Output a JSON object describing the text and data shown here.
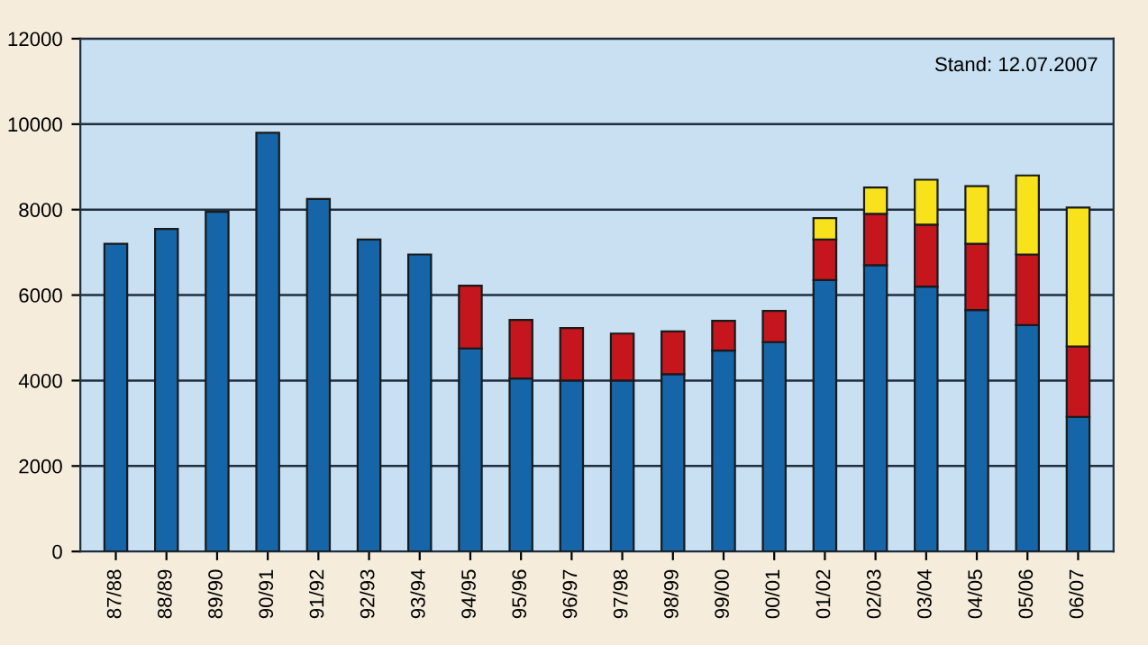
{
  "chart_data": {
    "type": "bar",
    "stacked": true,
    "categories": [
      "87/88",
      "88/89",
      "89/90",
      "90/91",
      "91/92",
      "92/93",
      "93/94",
      "94/95",
      "95/96",
      "96/97",
      "97/98",
      "98/99",
      "99/00",
      "00/01",
      "01/02",
      "02/03",
      "03/04",
      "04/05",
      "05/06",
      "06/07"
    ],
    "series": [
      {
        "color": "#1565a8",
        "values": [
          7200,
          7550,
          7950,
          9800,
          8250,
          7300,
          6950,
          4750,
          4050,
          4000,
          4000,
          4150,
          4700,
          4900,
          6350,
          6700,
          6200,
          5650,
          5300,
          3150
        ]
      },
      {
        "color": "#c4161c",
        "values": [
          null,
          null,
          null,
          null,
          null,
          null,
          null,
          1470,
          1370,
          1230,
          1100,
          1000,
          700,
          730,
          950,
          1200,
          1450,
          1550,
          1650,
          1650
        ]
      },
      {
        "color": "#f7e21b",
        "values": [
          null,
          null,
          null,
          null,
          null,
          null,
          null,
          null,
          null,
          null,
          null,
          null,
          null,
          null,
          500,
          620,
          1050,
          1350,
          1850,
          3250
        ]
      }
    ],
    "ylim": [
      0,
      12000
    ],
    "yticks": [
      0,
      2000,
      4000,
      6000,
      8000,
      10000,
      12000
    ],
    "grid": "y",
    "annotations": [
      "Stand: 12.07.2007"
    ]
  }
}
